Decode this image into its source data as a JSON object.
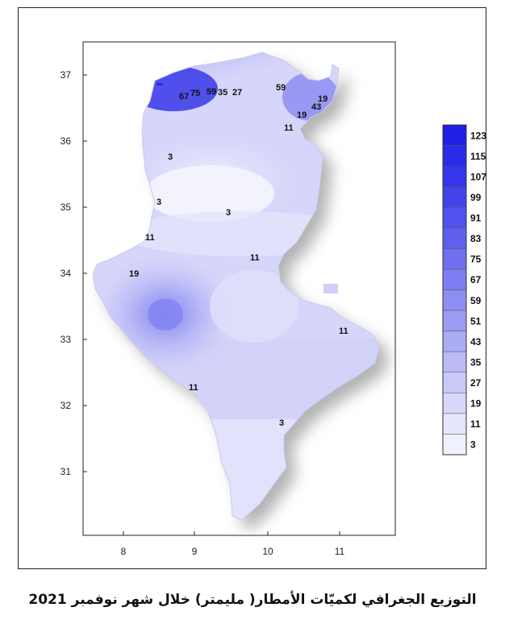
{
  "caption": "التوزيع الجغرافي لكميّات الأمطار( مليمتر) خلال شهر نوفمبر 2021",
  "x_ticks": [
    "8",
    "9",
    "10",
    "11"
  ],
  "y_ticks": [
    "37",
    "36",
    "35",
    "34",
    "33",
    "32",
    "31"
  ],
  "legend": {
    "levels": [
      "123",
      "115",
      "107",
      "99",
      "91",
      "83",
      "75",
      "67",
      "59",
      "51",
      "43",
      "35",
      "27",
      "19",
      "11",
      "3"
    ],
    "colors": [
      "#1f1fe6",
      "#2a2ae8",
      "#3535ea",
      "#4343ec",
      "#5252ee",
      "#6060ef",
      "#6f6ff0",
      "#7d7df1",
      "#8d8df3",
      "#9c9cf4",
      "#ababf6",
      "#babaf7",
      "#c9c9f9",
      "#d8d8fb",
      "#e5e5fc",
      "#f1f1fe"
    ]
  },
  "contour_labels": [
    {
      "text": "67"
    },
    {
      "text": "75"
    },
    {
      "text": "59"
    },
    {
      "text": "35"
    },
    {
      "text": "27"
    },
    {
      "text": "59"
    },
    {
      "text": "19"
    },
    {
      "text": "43"
    },
    {
      "text": "19"
    },
    {
      "text": "11"
    },
    {
      "text": "3"
    },
    {
      "text": "3"
    },
    {
      "text": "3"
    },
    {
      "text": "11"
    },
    {
      "text": "11"
    },
    {
      "text": "19"
    },
    {
      "text": "11"
    },
    {
      "text": "11"
    },
    {
      "text": "3"
    }
  ]
}
